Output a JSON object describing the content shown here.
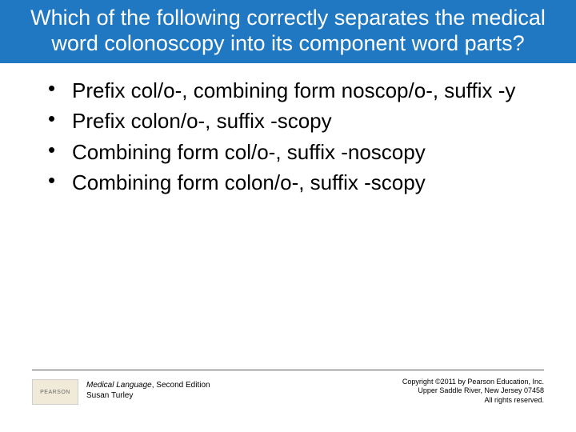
{
  "header": {
    "background_color": "#1f78c1",
    "text_color": "#ffffff",
    "title": "Which of the following correctly separates the medical word colonoscopy into its component word parts?",
    "font_size": 27
  },
  "body": {
    "text_color": "#000000",
    "font_size": 26,
    "bullets": [
      {
        "text": "Prefix col/o-, combining form noscop/o-, suffix -y"
      },
      {
        "text": "Prefix colon/o-, suffix -scopy"
      },
      {
        "text": "Combining form col/o-, suffix -noscopy"
      },
      {
        "text": "Combining form colon/o-, suffix -scopy"
      }
    ]
  },
  "footer": {
    "rule_color": "#555555",
    "logo": {
      "text": "PEARSON",
      "bg_color": "#f1ead8",
      "text_color": "#6b6b6b"
    },
    "book": {
      "title": "Medical Language",
      "edition": ", Second Edition",
      "author": "Susan Turley",
      "font_size": 10,
      "text_color": "#000000"
    },
    "copyright": {
      "line1": "Copyright ©2011 by Pearson Education, Inc.",
      "line2": "Upper Saddle River, New Jersey 07458",
      "line3": "All rights reserved.",
      "font_size": 9,
      "text_color": "#000000"
    }
  }
}
